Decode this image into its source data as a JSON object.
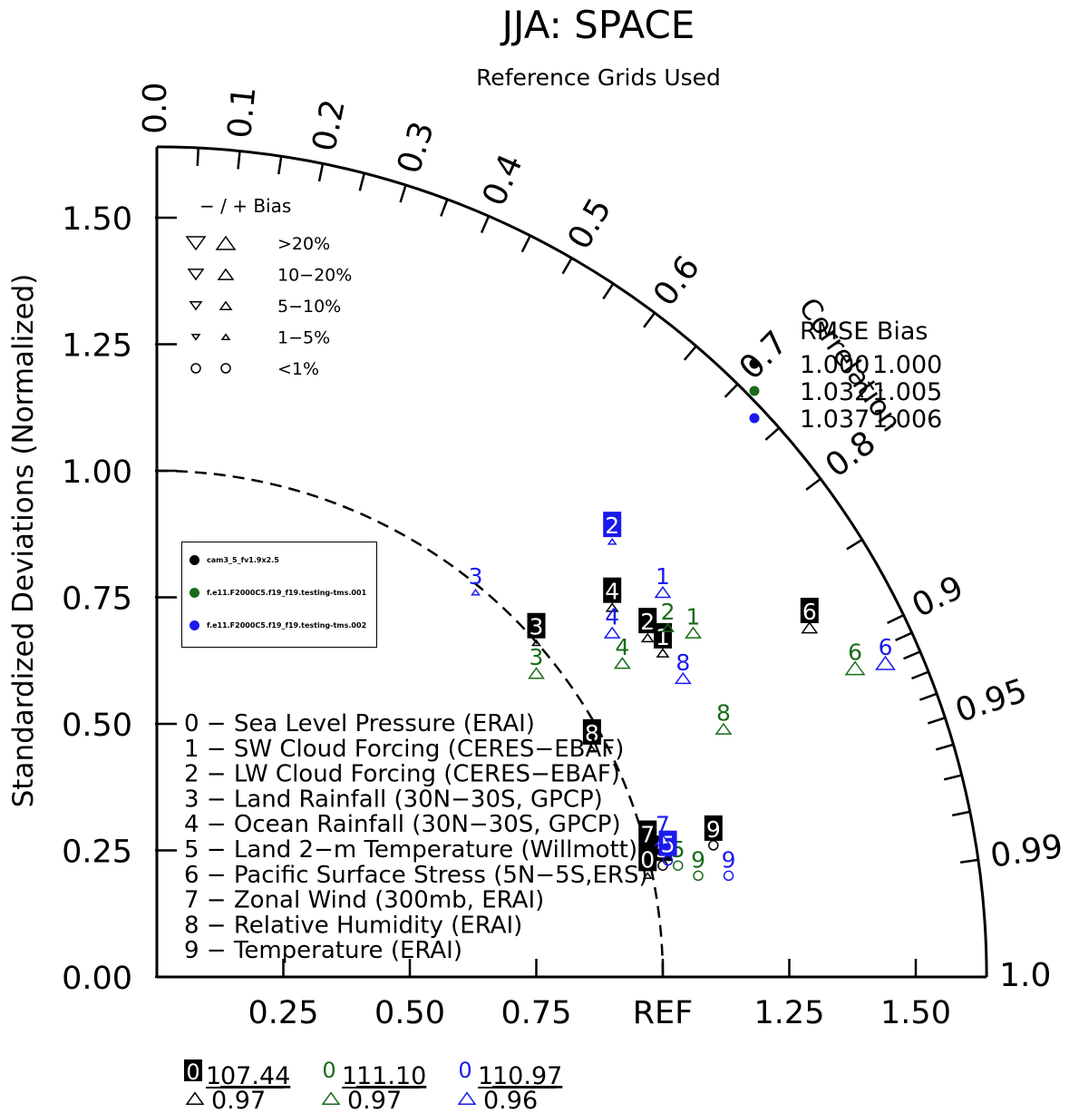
{
  "chart_data": {
    "type": "scatter",
    "subtype": "taylor-diagram",
    "title": "JJA: SPACE",
    "subtitle": "Reference Grids Used",
    "ylabel": "Standardized Deviations (Normalized)",
    "arc_label": "Correlation",
    "ref_label": "REF",
    "std_max": 1.64,
    "y_ticks": [
      {
        "v": 0.0,
        "label": "0.00"
      },
      {
        "v": 0.25,
        "label": "0.25"
      },
      {
        "v": 0.5,
        "label": "0.50"
      },
      {
        "v": 0.75,
        "label": "0.75"
      },
      {
        "v": 1.0,
        "label": "1.00"
      },
      {
        "v": 1.25,
        "label": "1.25"
      },
      {
        "v": 1.5,
        "label": "1.50"
      }
    ],
    "x_ticks": [
      {
        "v": 0.25,
        "label": "0.25"
      },
      {
        "v": 0.5,
        "label": "0.50"
      },
      {
        "v": 0.75,
        "label": "0.75"
      },
      {
        "v": 1.0,
        "label": "REF"
      },
      {
        "v": 1.25,
        "label": "1.25"
      },
      {
        "v": 1.5,
        "label": "1.50"
      }
    ],
    "corr_labels": [
      {
        "v": 0.0,
        "label": "0.0"
      },
      {
        "v": 0.1,
        "label": "0.1"
      },
      {
        "v": 0.2,
        "label": "0.2"
      },
      {
        "v": 0.3,
        "label": "0.3"
      },
      {
        "v": 0.4,
        "label": "0.4"
      },
      {
        "v": 0.5,
        "label": "0.5"
      },
      {
        "v": 0.6,
        "label": "0.6"
      },
      {
        "v": 0.7,
        "label": "0.7"
      },
      {
        "v": 0.8,
        "label": "0.8"
      },
      {
        "v": 0.9,
        "label": "0.9"
      },
      {
        "v": 0.95,
        "label": "0.95"
      },
      {
        "v": 0.99,
        "label": "0.99"
      },
      {
        "v": 1.0,
        "label": "1.0"
      }
    ],
    "corr_minor_ticks": [
      0.05,
      0.1,
      0.15,
      0.2,
      0.25,
      0.3,
      0.35,
      0.4,
      0.45,
      0.5,
      0.55,
      0.6,
      0.65,
      0.7,
      0.75,
      0.8,
      0.85,
      0.9,
      0.91,
      0.92,
      0.93,
      0.94,
      0.95,
      0.96,
      0.97,
      0.98,
      0.99
    ],
    "bias_legend": {
      "header": "−  /  +       Bias",
      "rows": [
        {
          "label": ">20%",
          "size": 10,
          "shape": "triangle"
        },
        {
          "label": "10−20%",
          "size": 8,
          "shape": "triangle"
        },
        {
          "label": "5−10%",
          "size": 6,
          "shape": "triangle"
        },
        {
          "label": "1−5%",
          "size": 4,
          "shape": "triangle"
        },
        {
          "label": "<1%",
          "size": 4,
          "shape": "circle"
        }
      ]
    },
    "series": [
      {
        "name": "cam3_5_fv1.9x2.5",
        "color": "#000000",
        "label_style": "boxed",
        "rmse": "1.000",
        "bias": "1.000",
        "summary_num": "0",
        "summary_top": "1",
        "summary_value": "07.44",
        "summary_tri": "0.97",
        "points": [
          {
            "id": "0",
            "x": 0.97,
            "y": 0.2,
            "marker": "up",
            "msize": 4
          },
          {
            "id": "1",
            "x": 1.0,
            "y": 0.64,
            "marker": "up",
            "msize": 6
          },
          {
            "id": "2",
            "x": 0.97,
            "y": 0.67,
            "marker": "up",
            "msize": 6
          },
          {
            "id": "3",
            "x": 0.75,
            "y": 0.66,
            "marker": "up",
            "msize": 4
          },
          {
            "id": "4",
            "x": 0.9,
            "y": 0.73,
            "marker": "up",
            "msize": 6
          },
          {
            "id": "5",
            "x": 1.0,
            "y": 0.22,
            "marker": "circle",
            "msize": 4
          },
          {
            "id": "6",
            "x": 1.29,
            "y": 0.69,
            "marker": "up",
            "msize": 8
          },
          {
            "id": "7",
            "x": 0.97,
            "y": 0.25,
            "marker": "none",
            "msize": 4
          },
          {
            "id": "8",
            "x": 0.86,
            "y": 0.45,
            "marker": "up",
            "msize": 4
          },
          {
            "id": "9",
            "x": 1.1,
            "y": 0.26,
            "marker": "circle",
            "msize": 4
          }
        ]
      },
      {
        "name": "f.e11.F2000C5.f19_f19.testing-tms.001",
        "color": "#1a6b1a",
        "label_style": "plain",
        "rmse": "1.032",
        "bias": "1.005",
        "summary_num": "0",
        "summary_top": "1",
        "summary_value": "11.10",
        "summary_tri": "0.97",
        "points": [
          {
            "id": "1",
            "x": 1.06,
            "y": 0.68,
            "marker": "up",
            "msize": 8
          },
          {
            "id": "2",
            "x": 1.01,
            "y": 0.69,
            "marker": "up",
            "msize": 6
          },
          {
            "id": "3",
            "x": 0.75,
            "y": 0.6,
            "marker": "up",
            "msize": 8
          },
          {
            "id": "4",
            "x": 0.92,
            "y": 0.62,
            "marker": "up",
            "msize": 8
          },
          {
            "id": "5",
            "x": 1.03,
            "y": 0.22,
            "marker": "circle",
            "msize": 4
          },
          {
            "id": "6",
            "x": 1.38,
            "y": 0.61,
            "marker": "up",
            "msize": 10
          },
          {
            "id": "8",
            "x": 1.12,
            "y": 0.49,
            "marker": "up",
            "msize": 8
          },
          {
            "id": "9",
            "x": 1.07,
            "y": 0.2,
            "marker": "circle",
            "msize": 4
          }
        ]
      },
      {
        "name": "f.e11.F2000C5.f19_f19.testing-tms.002",
        "color": "#1a1aee",
        "label_style": "blue-boxed",
        "rmse": "1.037",
        "bias": "1.006",
        "summary_num": "0",
        "summary_top": "1",
        "summary_value": "10.97",
        "summary_tri": "0.96",
        "points": [
          {
            "id": "1",
            "x": 1.0,
            "y": 0.76,
            "marker": "up",
            "msize": 8
          },
          {
            "id": "2",
            "x": 0.9,
            "y": 0.86,
            "marker": "up",
            "msize": 4
          },
          {
            "id": "3",
            "x": 0.63,
            "y": 0.76,
            "marker": "up",
            "msize": 4
          },
          {
            "id": "4",
            "x": 0.9,
            "y": 0.68,
            "marker": "up",
            "msize": 8
          },
          {
            "id": "5",
            "x": 1.01,
            "y": 0.23,
            "marker": "circle",
            "msize": 4
          },
          {
            "id": "6",
            "x": 1.44,
            "y": 0.62,
            "marker": "up",
            "msize": 10
          },
          {
            "id": "7",
            "x": 1.0,
            "y": 0.27,
            "marker": "up",
            "msize": 8
          },
          {
            "id": "8",
            "x": 1.04,
            "y": 0.59,
            "marker": "up",
            "msize": 8
          },
          {
            "id": "9",
            "x": 1.13,
            "y": 0.2,
            "marker": "circle",
            "msize": 4
          }
        ]
      }
    ],
    "case_list": [
      "0 − Sea Level Pressure (ERAI)",
      "1 − SW Cloud Forcing (CERES−EBAF)",
      "2 − LW Cloud Forcing (CERES−EBAF)",
      "3 − Land Rainfall (30N−30S, GPCP)",
      "4 − Ocean Rainfall (30N−30S, GPCP)",
      "5 − Land 2−m Temperature (Willmott)",
      "6 − Pacific Surface Stress (5N−5S,ERS)",
      "7 − Zonal Wind (300mb, ERAI)",
      "8 − Relative Humidity (ERAI)",
      "9 − Temperature (ERAI)"
    ],
    "rmse_header": "RMSE  Bias"
  }
}
